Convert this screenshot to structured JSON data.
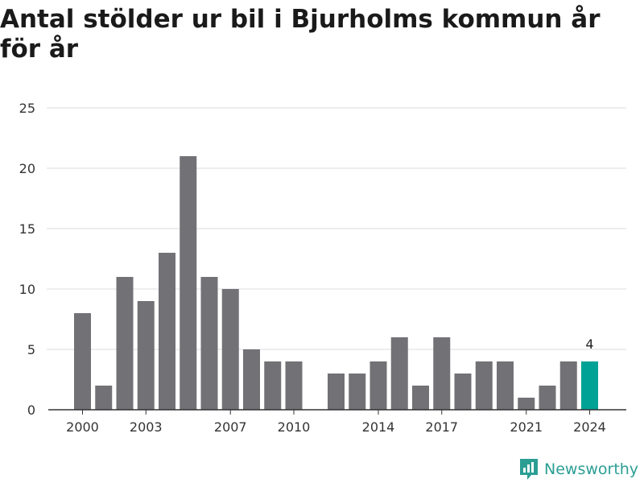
{
  "chart_data": {
    "type": "bar",
    "title": "Antal stölder ur bil i Bjurholms kommun år för år",
    "x": [
      2000,
      2001,
      2002,
      2003,
      2004,
      2005,
      2006,
      2007,
      2008,
      2009,
      2010,
      2011,
      2012,
      2013,
      2014,
      2015,
      2016,
      2017,
      2018,
      2019,
      2020,
      2021,
      2022,
      2023,
      2024
    ],
    "values": [
      8,
      2,
      11,
      9,
      13,
      21,
      11,
      10,
      5,
      4,
      4,
      0,
      3,
      3,
      4,
      6,
      2,
      6,
      3,
      4,
      4,
      1,
      2,
      4,
      4
    ],
    "x_ticks": [
      "2000",
      "2003",
      "2007",
      "2010",
      "2014",
      "2017",
      "2021",
      "2024"
    ],
    "y_ticks": [
      "0",
      "5",
      "10",
      "15",
      "20",
      "25"
    ],
    "ylim": [
      0,
      25
    ],
    "highlight": {
      "year": 2024,
      "label": "4"
    },
    "xlabel": "",
    "ylabel": "",
    "grid": true,
    "colors": {
      "bar": "#727176",
      "highlight": "#00a296",
      "grid": "#dddddd",
      "axis": "#333333"
    }
  },
  "brand": {
    "name": "Newsworthy",
    "color": "#2b9e94",
    "icon": "chart-bubble-icon"
  }
}
